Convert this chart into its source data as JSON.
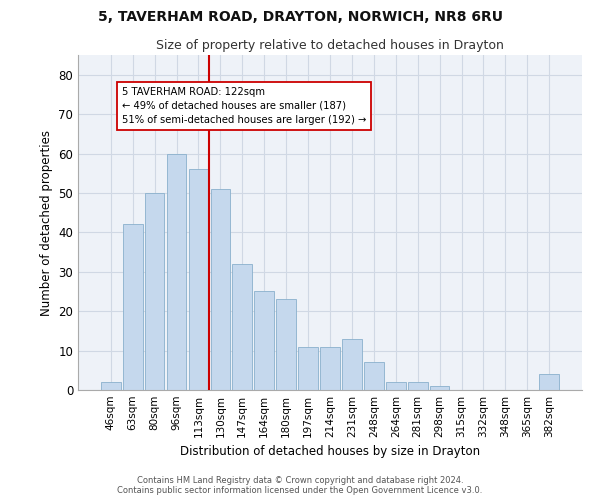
{
  "title_line1": "5, TAVERHAM ROAD, DRAYTON, NORWICH, NR8 6RU",
  "title_line2": "Size of property relative to detached houses in Drayton",
  "xlabel": "Distribution of detached houses by size in Drayton",
  "ylabel": "Number of detached properties",
  "bar_labels": [
    "46sqm",
    "63sqm",
    "80sqm",
    "96sqm",
    "113sqm",
    "130sqm",
    "147sqm",
    "164sqm",
    "180sqm",
    "197sqm",
    "214sqm",
    "231sqm",
    "248sqm",
    "264sqm",
    "281sqm",
    "298sqm",
    "315sqm",
    "332sqm",
    "348sqm",
    "365sqm",
    "382sqm"
  ],
  "bar_values": [
    2,
    42,
    50,
    60,
    56,
    51,
    32,
    25,
    23,
    11,
    11,
    13,
    7,
    2,
    2,
    1,
    0,
    0,
    0,
    0,
    4
  ],
  "bar_color": "#c5d8ed",
  "bar_edge_color": "#8ab0cc",
  "vline_x_index": 4.5,
  "vline_color": "#cc0000",
  "annotation_line1": "5 TAVERHAM ROAD: 122sqm",
  "annotation_line2": "← 49% of detached houses are smaller (187)",
  "annotation_line3": "51% of semi-detached houses are larger (192) →",
  "annotation_box_color": "#ffffff",
  "annotation_edge_color": "#cc0000",
  "ylim": [
    0,
    85
  ],
  "yticks": [
    0,
    10,
    20,
    30,
    40,
    50,
    60,
    70,
    80
  ],
  "grid_color": "#d0d8e4",
  "bg_color": "#eef2f8",
  "footer_line1": "Contains HM Land Registry data © Crown copyright and database right 2024.",
  "footer_line2": "Contains public sector information licensed under the Open Government Licence v3.0."
}
